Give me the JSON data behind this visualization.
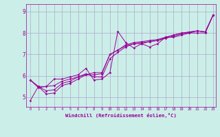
{
  "xlabel": "Windchill (Refroidissement éolien,°C)",
  "bg_color": "#cceee8",
  "grid_color": "#aaaacc",
  "line_color": "#990099",
  "xlim": [
    -0.5,
    23.3
  ],
  "ylim": [
    4.55,
    9.35
  ],
  "yticks": [
    5,
    6,
    7,
    8,
    9
  ],
  "xticks": [
    0,
    1,
    2,
    3,
    4,
    5,
    6,
    7,
    8,
    9,
    10,
    11,
    12,
    13,
    14,
    15,
    16,
    17,
    18,
    19,
    20,
    21,
    22,
    23
  ],
  "lines": [
    [
      5.8,
      5.5,
      5.15,
      5.2,
      5.55,
      5.65,
      5.85,
      6.05,
      6.15,
      6.15,
      7.0,
      7.2,
      7.45,
      7.55,
      7.6,
      7.65,
      7.7,
      7.8,
      7.9,
      8.0,
      8.0,
      8.1,
      8.05,
      8.85
    ],
    [
      5.8,
      5.5,
      5.3,
      5.35,
      5.65,
      5.75,
      5.95,
      6.1,
      5.95,
      5.95,
      6.8,
      7.1,
      7.35,
      7.5,
      7.5,
      7.6,
      7.65,
      7.75,
      7.85,
      7.95,
      8.05,
      8.1,
      8.05,
      8.85
    ],
    [
      4.85,
      5.5,
      5.5,
      5.85,
      5.85,
      5.95,
      6.05,
      6.35,
      5.8,
      5.85,
      6.15,
      8.08,
      7.55,
      7.3,
      7.5,
      7.35,
      7.5,
      7.8,
      7.8,
      7.9,
      8.0,
      8.0,
      8.0,
      8.85
    ],
    [
      5.8,
      5.45,
      5.5,
      5.55,
      5.75,
      5.85,
      5.95,
      6.05,
      6.05,
      6.1,
      7.0,
      7.2,
      7.4,
      7.5,
      7.55,
      7.6,
      7.65,
      7.8,
      7.9,
      8.0,
      8.05,
      8.1,
      8.05,
      8.85
    ]
  ]
}
